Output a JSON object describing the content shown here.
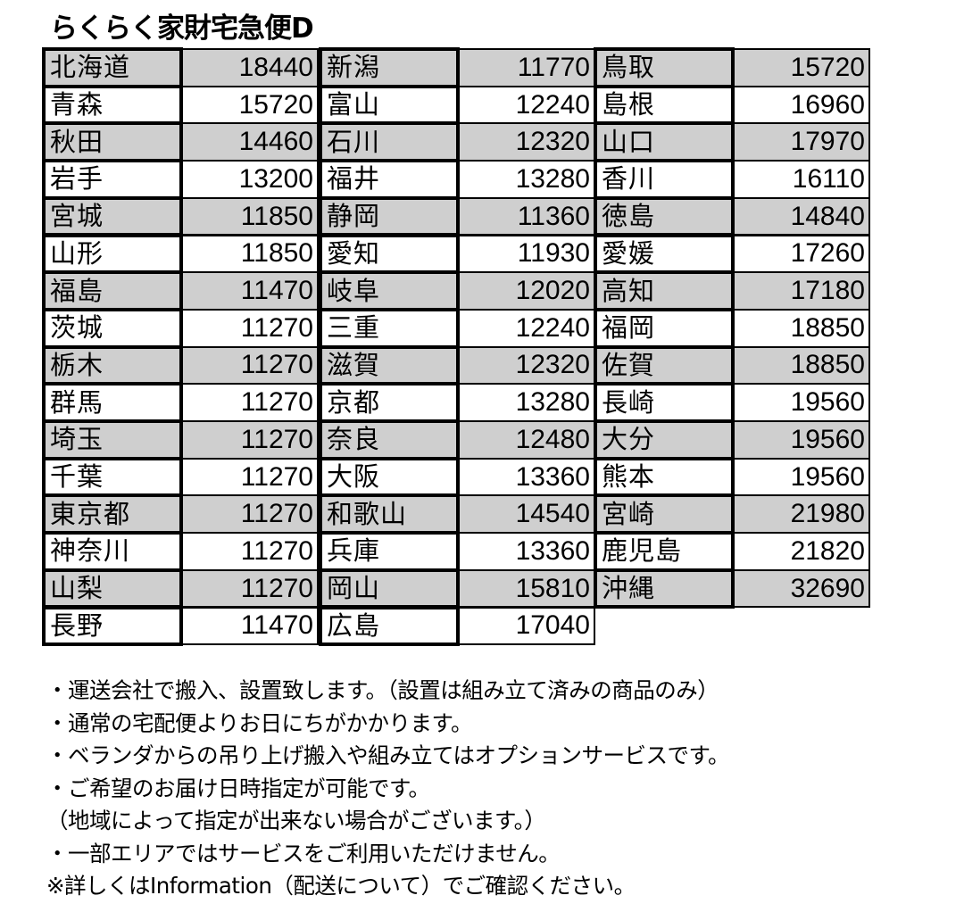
{
  "title": "らくらく家財宅急便D",
  "colors": {
    "shaded_row": "#cfcfcf",
    "plain_row": "#ffffff",
    "border": "#000000"
  },
  "columns": [
    [
      {
        "pref": "北海道",
        "price": "18440"
      },
      {
        "pref": "青森",
        "price": "15720"
      },
      {
        "pref": "秋田",
        "price": "14460"
      },
      {
        "pref": "岩手",
        "price": "13200"
      },
      {
        "pref": "宮城",
        "price": "11850"
      },
      {
        "pref": "山形",
        "price": "11850"
      },
      {
        "pref": "福島",
        "price": "11470"
      },
      {
        "pref": "茨城",
        "price": "11270"
      },
      {
        "pref": "栃木",
        "price": "11270"
      },
      {
        "pref": "群馬",
        "price": "11270"
      },
      {
        "pref": "埼玉",
        "price": "11270"
      },
      {
        "pref": "千葉",
        "price": "11270"
      },
      {
        "pref": "東京都",
        "price": "11270"
      },
      {
        "pref": "神奈川",
        "price": "11270"
      },
      {
        "pref": "山梨",
        "price": "11270"
      },
      {
        "pref": "長野",
        "price": "11470"
      }
    ],
    [
      {
        "pref": "新潟",
        "price": "11770"
      },
      {
        "pref": "富山",
        "price": "12240"
      },
      {
        "pref": "石川",
        "price": "12320"
      },
      {
        "pref": "福井",
        "price": "13280"
      },
      {
        "pref": "静岡",
        "price": "11360"
      },
      {
        "pref": "愛知",
        "price": "11930"
      },
      {
        "pref": "岐阜",
        "price": "12020"
      },
      {
        "pref": "三重",
        "price": "12240"
      },
      {
        "pref": "滋賀",
        "price": "12320"
      },
      {
        "pref": "京都",
        "price": "13280"
      },
      {
        "pref": "奈良",
        "price": "12480"
      },
      {
        "pref": "大阪",
        "price": "13360"
      },
      {
        "pref": "和歌山",
        "price": "14540"
      },
      {
        "pref": "兵庫",
        "price": "13360"
      },
      {
        "pref": "岡山",
        "price": "15810"
      },
      {
        "pref": "広島",
        "price": "17040"
      }
    ],
    [
      {
        "pref": "鳥取",
        "price": "15720"
      },
      {
        "pref": "島根",
        "price": "16960"
      },
      {
        "pref": "山口",
        "price": "17970"
      },
      {
        "pref": "香川",
        "price": "16110"
      },
      {
        "pref": "徳島",
        "price": "14840"
      },
      {
        "pref": "愛媛",
        "price": "17260"
      },
      {
        "pref": "高知",
        "price": "17180"
      },
      {
        "pref": "福岡",
        "price": "18850"
      },
      {
        "pref": "佐賀",
        "price": "18850"
      },
      {
        "pref": "長崎",
        "price": "19560"
      },
      {
        "pref": "大分",
        "price": "19560"
      },
      {
        "pref": "熊本",
        "price": "19560"
      },
      {
        "pref": "宮崎",
        "price": "21980"
      },
      {
        "pref": "鹿児島",
        "price": "21820"
      },
      {
        "pref": "沖縄",
        "price": "32690"
      }
    ]
  ],
  "notes": [
    "・運送会社で搬入、設置致します。（設置は組み立て済みの商品のみ）",
    "・通常の宅配便よりお日にちがかかります。",
    "・ベランダからの吊り上げ搬入や組み立てはオプションサービスです。",
    "・ご希望のお届け日時指定が可能です。",
    "（地域によって指定が出来ない場合がございます。）",
    "・一部エリアではサービスをご利用いただけません。",
    "※詳しくはInformation（配送について）でご確認ください。"
  ]
}
